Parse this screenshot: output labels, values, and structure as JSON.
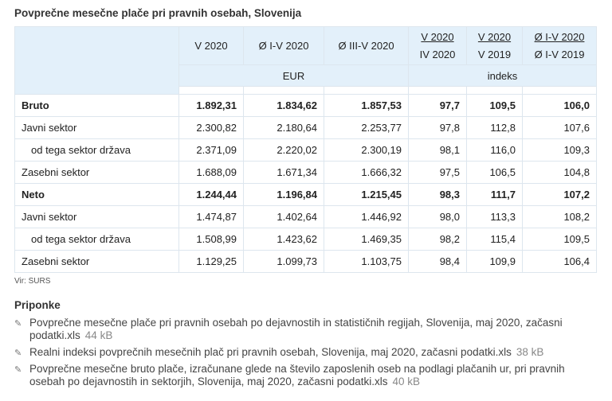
{
  "title": "Povprečne mesečne plače pri pravnih osebah, Slovenija",
  "table": {
    "headers": [
      {
        "top": "V 2020"
      },
      {
        "top": "Ø I-V 2020"
      },
      {
        "top": "Ø III-V 2020"
      },
      {
        "num": "V 2020",
        "den": "IV 2020"
      },
      {
        "num": "V 2020",
        "den": "V 2019"
      },
      {
        "num": "Ø I-V 2020",
        "den": "Ø I-V 2019"
      }
    ],
    "unit_eur": "EUR",
    "unit_index": "indeks",
    "rows": [
      {
        "label": "Bruto",
        "bold": true,
        "indent": false,
        "values": [
          "1.892,31",
          "1.834,62",
          "1.857,53",
          "97,7",
          "109,5",
          "106,0"
        ]
      },
      {
        "label": "Javni sektor",
        "bold": false,
        "indent": false,
        "values": [
          "2.300,82",
          "2.180,64",
          "2.253,77",
          "97,8",
          "112,8",
          "107,6"
        ]
      },
      {
        "label": "od tega sektor država",
        "bold": false,
        "indent": true,
        "values": [
          "2.371,09",
          "2.220,02",
          "2.300,19",
          "98,1",
          "116,0",
          "109,3"
        ]
      },
      {
        "label": "Zasebni sektor",
        "bold": false,
        "indent": false,
        "values": [
          "1.688,09",
          "1.671,34",
          "1.666,32",
          "97,5",
          "106,5",
          "104,8"
        ]
      },
      {
        "label": "Neto",
        "bold": true,
        "indent": false,
        "values": [
          "1.244,44",
          "1.196,84",
          "1.215,45",
          "98,3",
          "111,7",
          "107,2"
        ]
      },
      {
        "label": "Javni sektor",
        "bold": false,
        "indent": false,
        "values": [
          "1.474,87",
          "1.402,64",
          "1.446,92",
          "98,0",
          "113,3",
          "108,2"
        ]
      },
      {
        "label": "od tega sektor država",
        "bold": false,
        "indent": true,
        "values": [
          "1.508,99",
          "1.423,62",
          "1.469,35",
          "98,2",
          "115,4",
          "109,5"
        ]
      },
      {
        "label": "Zasebni sektor",
        "bold": false,
        "indent": false,
        "values": [
          "1.129,25",
          "1.099,73",
          "1.103,75",
          "98,4",
          "109,9",
          "106,4"
        ]
      }
    ]
  },
  "source": "Vir: SURS",
  "attachments_title": "Priponke",
  "attachments": [
    {
      "name": "Povprečne mesečne plače pri pravnih osebah po dejavnostih in statističnih regijah, Slovenija, maj 2020, začasni podatki.xls",
      "size": "44 kB",
      "icon": "file-pin-icon"
    },
    {
      "name": "Realni indeksi povprečnih mesečnih plač pri pravnih osebah, Slovenija, maj 2020, začasni podatki.xls",
      "size": "38 kB",
      "icon": "file-pin-icon"
    },
    {
      "name": "Povprečne mesečne bruto plače, izračunane glede na število zaposlenih oseb na podlagi plačanih ur, pri pravnih osebah po dejavnostih in sektorjih, Slovenija, maj 2020, začasni podatki.xls",
      "size": "40 kB",
      "icon": "file-pin-icon"
    }
  ]
}
